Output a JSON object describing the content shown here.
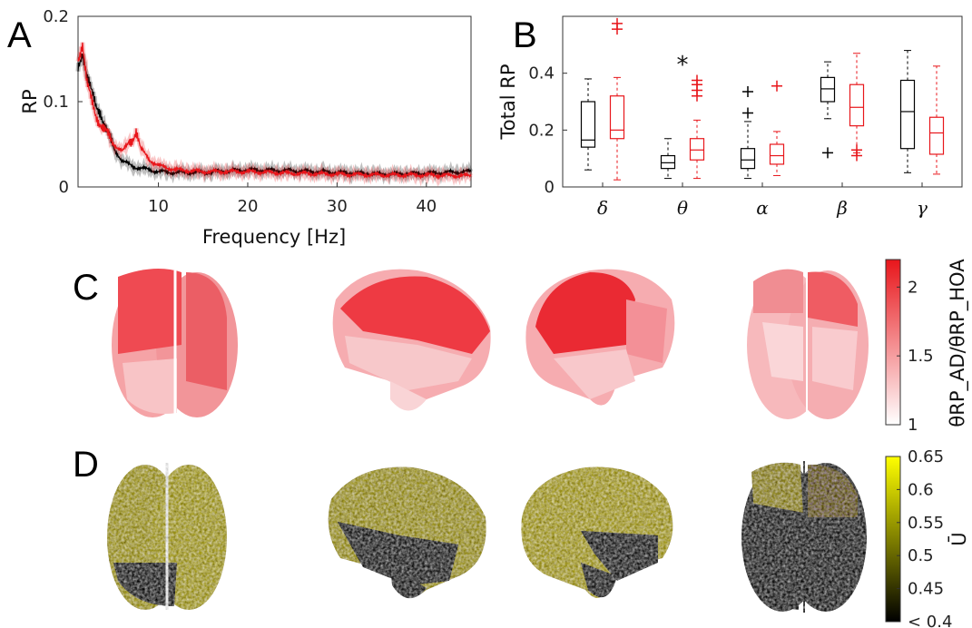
{
  "panels": {
    "a": "A",
    "b": "B",
    "c": "C",
    "d": "D"
  },
  "chart_data": [
    {
      "panel": "A",
      "type": "line",
      "xlabel": "Frequency [Hz]",
      "ylabel": "RP",
      "xlim": [
        1,
        45
      ],
      "ylim": [
        0,
        0.2
      ],
      "xticks": [
        "10",
        "20",
        "30",
        "40"
      ],
      "yticks": [
        "0",
        "0.1",
        "0.2"
      ],
      "series_colors": [
        "#000000",
        "#e8161b"
      ],
      "series": [
        {
          "x": [
            1,
            1.5,
            2,
            2.5,
            3,
            3.5,
            4,
            5,
            6,
            7,
            7.5,
            8,
            9,
            10,
            12,
            15,
            20,
            25,
            30,
            35,
            40,
            45
          ],
          "values": [
            0.14,
            0.16,
            0.13,
            0.11,
            0.095,
            0.09,
            0.07,
            0.045,
            0.03,
            0.025,
            0.023,
            0.022,
            0.02,
            0.018,
            0.017,
            0.017,
            0.02,
            0.019,
            0.017,
            0.015,
            0.016,
            0.018
          ]
        },
        {
          "x": [
            1,
            1.5,
            2,
            2.5,
            3,
            3.5,
            4,
            5,
            6,
            7,
            7.5,
            8,
            9,
            10,
            12,
            15,
            20,
            25,
            30,
            35,
            40,
            45
          ],
          "values": [
            0.15,
            0.17,
            0.12,
            0.1,
            0.085,
            0.075,
            0.065,
            0.05,
            0.042,
            0.055,
            0.068,
            0.045,
            0.032,
            0.025,
            0.02,
            0.018,
            0.018,
            0.016,
            0.015,
            0.014,
            0.014,
            0.013
          ]
        }
      ]
    },
    {
      "panel": "B",
      "type": "box",
      "ylabel": "Total RP",
      "ylim": [
        0,
        0.6
      ],
      "yticks": [
        "0",
        "0.2",
        "0.4"
      ],
      "categories": [
        "δ",
        "θ",
        "α",
        "β",
        "γ"
      ],
      "annotation": {
        "text": "*",
        "category": 1
      },
      "series_colors": [
        "#000000",
        "#e8161b"
      ],
      "series": [
        {
          "boxes": [
            {
              "min": 0.06,
              "q1": 0.14,
              "median": 0.165,
              "q3": 0.3,
              "max": 0.38,
              "outliers": []
            },
            {
              "min": 0.03,
              "q1": 0.065,
              "median": 0.085,
              "q3": 0.11,
              "max": 0.17,
              "outliers": []
            },
            {
              "min": 0.03,
              "q1": 0.065,
              "median": 0.095,
              "q3": 0.135,
              "max": 0.23,
              "outliers": [
                0.26,
                0.335
              ]
            },
            {
              "min": 0.24,
              "q1": 0.3,
              "median": 0.345,
              "q3": 0.385,
              "max": 0.44,
              "outliers": [
                0.12
              ]
            },
            {
              "min": 0.05,
              "q1": 0.135,
              "median": 0.265,
              "q3": 0.375,
              "max": 0.48,
              "outliers": []
            }
          ]
        },
        {
          "boxes": [
            {
              "min": 0.025,
              "q1": 0.17,
              "median": 0.2,
              "q3": 0.32,
              "max": 0.385,
              "outliers": [
                0.555,
                0.575
              ]
            },
            {
              "min": 0.03,
              "q1": 0.095,
              "median": 0.13,
              "q3": 0.17,
              "max": 0.235,
              "outliers": [
                0.32,
                0.34,
                0.36,
                0.375
              ]
            },
            {
              "min": 0.04,
              "q1": 0.08,
              "median": 0.11,
              "q3": 0.15,
              "max": 0.195,
              "outliers": [
                0.355
              ]
            },
            {
              "min": 0.12,
              "q1": 0.215,
              "median": 0.28,
              "q3": 0.36,
              "max": 0.47,
              "outliers": [
                0.11,
                0.13
              ]
            },
            {
              "min": 0.045,
              "q1": 0.115,
              "median": 0.19,
              "q3": 0.245,
              "max": 0.425,
              "outliers": []
            }
          ]
        }
      ]
    },
    {
      "panel": "C",
      "type": "heatmap",
      "colorbar_label": "θRP_AD/θRP_HOA",
      "colorbar_ticks": [
        "1",
        "1.5",
        "2"
      ],
      "colorbar_range": [
        1,
        2.2
      ],
      "colors": {
        "low": "#ffffff",
        "high": "#e8161b"
      }
    },
    {
      "panel": "D",
      "type": "heatmap",
      "colorbar_label": "Ū",
      "colorbar_ticks": [
        "< 0.4",
        "0.45",
        "0.5",
        "0.55",
        "0.6",
        "0.65"
      ],
      "colorbar_range": [
        0.4,
        0.65
      ],
      "colors": {
        "low": "#000000",
        "high": "#ffff00"
      }
    }
  ]
}
